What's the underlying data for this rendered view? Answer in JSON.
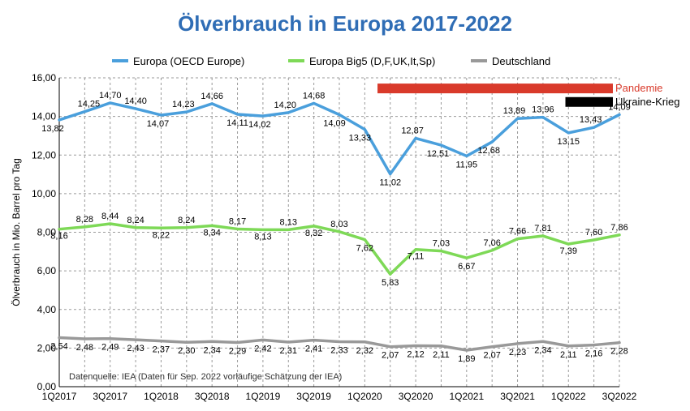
{
  "chart_data": {
    "type": "line",
    "title": "Ölverbrauch in Europa 2017-2022",
    "ylabel": "Ölverbrauch in Mio. Barrel pro Tag",
    "xlabel": "",
    "ylim": [
      0,
      16
    ],
    "yticks": [
      "0,00",
      "2,00",
      "4,00",
      "6,00",
      "8,00",
      "10,00",
      "12,00",
      "14,00",
      "16,00"
    ],
    "categories": [
      "1Q2017",
      "2Q2017",
      "3Q2017",
      "4Q2017",
      "1Q2018",
      "2Q2018",
      "3Q2018",
      "4Q2018",
      "1Q2019",
      "2Q2019",
      "3Q2019",
      "4Q2019",
      "1Q2020",
      "2Q2020",
      "3Q2020",
      "4Q2020",
      "1Q2021",
      "2Q2021",
      "3Q2021",
      "4Q2021",
      "1Q2022",
      "2Q2022",
      "3Q2022"
    ],
    "xtick_labels": [
      "1Q2017",
      "3Q2017",
      "1Q2018",
      "3Q2018",
      "1Q2019",
      "3Q2019",
      "1Q2020",
      "3Q2020",
      "1Q2021",
      "3Q2021",
      "1Q2022",
      "3Q2022"
    ],
    "series": [
      {
        "name": "Europa (OECD Europe)",
        "color": "#4a9fdc",
        "values": [
          13.82,
          14.25,
          14.7,
          14.4,
          14.07,
          14.23,
          14.66,
          14.11,
          14.02,
          14.2,
          14.68,
          14.09,
          13.33,
          11.02,
          12.87,
          12.51,
          11.95,
          12.68,
          13.89,
          13.96,
          13.15,
          13.43,
          14.09
        ],
        "labels": [
          "13,82",
          "14,25",
          "14,70",
          "14,40",
          "14,07",
          "14,23",
          "14,66",
          "14,11",
          "14,02",
          "14,20",
          "14,68",
          "14,09",
          "13,33",
          "11,02",
          "12,87",
          "12,51",
          "11,95",
          "12,68",
          "13,89",
          "13,96",
          "13,15",
          "13,43",
          "14,09"
        ]
      },
      {
        "name": "Europa Big5 (D,F,UK,It,Sp)",
        "color": "#7ed957",
        "values": [
          8.16,
          8.28,
          8.44,
          8.24,
          8.22,
          8.24,
          8.34,
          8.17,
          8.13,
          8.13,
          8.32,
          8.03,
          7.62,
          5.83,
          7.11,
          7.03,
          6.67,
          7.06,
          7.66,
          7.81,
          7.39,
          7.6,
          7.86
        ],
        "labels": [
          "8,16",
          "8,28",
          "8,44",
          "8,24",
          "8,22",
          "8,24",
          "8,34",
          "8,17",
          "8,13",
          "8,13",
          "8,32",
          "8,03",
          "7,62",
          "5,83",
          "7,11",
          "7,03",
          "6,67",
          "7,06",
          "7,66",
          "7,81",
          "7,39",
          "7,60",
          "7,86"
        ]
      },
      {
        "name": "Deutschland",
        "color": "#999999",
        "values": [
          2.54,
          2.48,
          2.49,
          2.43,
          2.37,
          2.3,
          2.34,
          2.29,
          2.42,
          2.31,
          2.41,
          2.33,
          2.32,
          2.07,
          2.12,
          2.11,
          1.89,
          2.07,
          2.23,
          2.34,
          2.11,
          2.16,
          2.28
        ],
        "labels": [
          "2,54",
          "2,48",
          "2,49",
          "2,43",
          "2,37",
          "2,30",
          "2,34",
          "2,29",
          "2,42",
          "2,31",
          "2,41",
          "2,33",
          "2,32",
          "2,07",
          "2,12",
          "2,11",
          "1,89",
          "2,07",
          "2,23",
          "2,34",
          "2,11",
          "2,16",
          "2,28"
        ]
      }
    ],
    "annotations": [
      {
        "text": "Pandemie",
        "color": "#d93a2b",
        "text_color": "#d93a2b",
        "start": "1Q2020",
        "end": "3Q2022"
      },
      {
        "text": "Ukraine-Krieg",
        "color": "#000000",
        "text_color": "#000000",
        "start": "1Q2022",
        "end": "3Q2022"
      }
    ],
    "source_note": "Datenquelle: IEA (Daten für Sep. 2022 vorläufige Schätzung der IEA)",
    "grid": true,
    "legend_position": "top"
  }
}
